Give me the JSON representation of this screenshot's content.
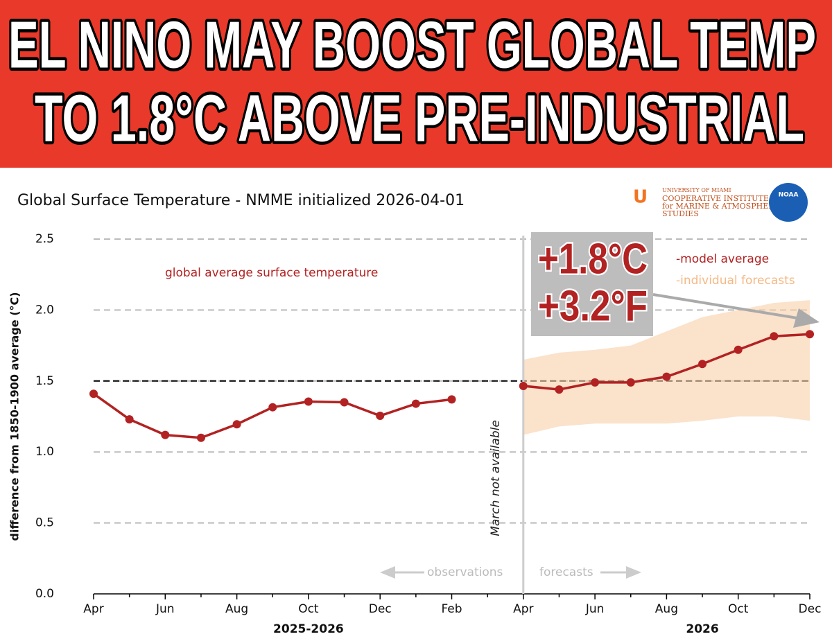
{
  "headline": {
    "line1": "EL NINO MAY BOOST GLOBAL TEMP",
    "line2": "TO 1.8°C  ABOVE PRE-INDUSTRIAL"
  },
  "logos": {
    "university": "UNIVERSITY OF MIAMI",
    "institute1": "COOPERATIVE INSTITUTE",
    "institute2": "for MARINE & ATMOSPHERIC",
    "institute3": "STUDIES",
    "agency": "NOAA"
  },
  "chart_data": {
    "type": "line",
    "title": "Global Surface Temperature - NMME initialized 2026-04-01",
    "y_label": "difference from 1850-1900 average (°C)",
    "x_groups": [
      {
        "label": "2025-2026",
        "index": 6
      },
      {
        "label": "2026",
        "index": 17
      }
    ],
    "categories": [
      "Apr",
      null,
      "Jun",
      null,
      "Aug",
      null,
      "Oct",
      null,
      "Dec",
      null,
      "Feb",
      null,
      "Apr",
      null,
      "Jun",
      null,
      "Aug",
      null,
      "Oct",
      null,
      "Dec"
    ],
    "series": [
      {
        "name": "-model average",
        "color": "#b22222",
        "values": [
          1.41,
          1.23,
          1.12,
          1.1,
          1.195,
          1.315,
          1.355,
          1.35,
          1.255,
          1.34,
          1.37,
          null,
          1.465,
          1.44,
          1.49,
          1.49,
          1.53,
          1.62,
          1.72,
          1.815,
          1.83
        ]
      },
      {
        "name": "-individual forecasts",
        "color": "#f9cfa8",
        "lower": [
          null,
          null,
          null,
          null,
          null,
          null,
          null,
          null,
          null,
          null,
          null,
          null,
          1.12,
          1.18,
          1.2,
          1.2,
          1.2,
          1.22,
          1.25,
          1.25,
          1.22
        ],
        "upper": [
          null,
          null,
          null,
          null,
          null,
          null,
          null,
          null,
          null,
          null,
          null,
          null,
          1.65,
          1.7,
          1.72,
          1.75,
          1.85,
          1.95,
          2.0,
          2.05,
          2.07
        ]
      }
    ],
    "ylim": [
      0,
      2.5
    ],
    "yticks": [
      {
        "value": 0,
        "label": "0.0"
      },
      0.5,
      {
        "value": 1,
        "label": "1.0"
      },
      1.5,
      {
        "value": 2,
        "label": "2.0"
      },
      2.5
    ],
    "grid": true,
    "reference_line": 1.5,
    "divider_index": 12,
    "annotations": {
      "series_note": "global average surface temperature",
      "divider_note": "March not available",
      "observations": "observations",
      "forecasts": "forecasts",
      "callout_c": "+1.8°C",
      "callout_f": "+3.2°F"
    }
  }
}
